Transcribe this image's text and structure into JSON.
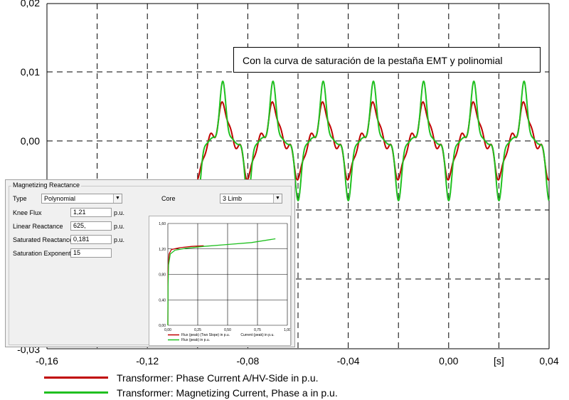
{
  "chart_data": {
    "type": "line",
    "x_ticks": [
      "-0,16",
      "-0,12",
      "-0,08",
      "-0,04",
      "0,00",
      "0,04"
    ],
    "y_ticks": [
      "0,02",
      "0,01",
      "0,00",
      "-0,03"
    ],
    "x_unit_label": "[s]",
    "xlim": [
      -0.16,
      0.04
    ],
    "ylim": [
      -0.03,
      0.02
    ],
    "grid": true,
    "annotation": "Con la curva de saturación de la pestaña EMT y polinomial",
    "series": [
      {
        "name": "Transformer: Phase Current A/HV-Side in p.u.",
        "color": "#c00000",
        "description_values": {
          "start_x": -0.1,
          "end_x": 0.04,
          "frequency_hz": 50,
          "peak": 0.0064,
          "trough": -0.0064
        }
      },
      {
        "name": "Transformer: Magnetizing Current, Phase a in p.u.",
        "color": "#20c020",
        "description_values": {
          "start_x": -0.1,
          "end_x": 0.04,
          "frequency_hz": 50,
          "peak": 0.0091,
          "trough": -0.0096
        }
      }
    ],
    "legend_placement": "bottom-left"
  },
  "dialog": {
    "title": "Magnetizing Reactance",
    "type_label": "Type",
    "type_value": "Polynomial",
    "core_label": "Core",
    "core_value": "3 Limb",
    "knee_flux_label": "Knee Flux",
    "knee_flux_value": "1,21",
    "linear_reactance_label": "Linear Reactance",
    "linear_reactance_value": "625,",
    "saturated_reactance_label": "Saturated Reactance",
    "saturated_reactance_value": "0,181",
    "saturation_exponent_label": "Saturation Exponent",
    "saturation_exponent_value": "15",
    "unit_pu": "p.u.",
    "mini_chart": {
      "type": "line",
      "y_ticks": [
        "1,60",
        "1,20",
        "0,80",
        "0,40",
        "0,00"
      ],
      "x_ticks": [
        "0,00",
        "0,25",
        "0,50",
        "0,75",
        "1,00"
      ],
      "x_axis_title": "Current (peak) in p.u.",
      "series": [
        {
          "name": "Flux (peak) (Two Slope) in p.u.",
          "color": "#c00000",
          "points": [
            [
              0,
              0.0
            ],
            [
              0.002,
              0.9
            ],
            [
              0.01,
              1.12
            ],
            [
              0.03,
              1.19
            ],
            [
              0.1,
              1.22
            ],
            [
              0.2,
              1.24
            ],
            [
              0.3,
              1.25
            ]
          ]
        },
        {
          "name": "Flux (peak) in p.u.",
          "color": "#20c020",
          "points": [
            [
              0,
              0.0
            ],
            [
              0.002,
              0.6
            ],
            [
              0.006,
              0.95
            ],
            [
              0.02,
              1.12
            ],
            [
              0.06,
              1.18
            ],
            [
              0.15,
              1.21
            ],
            [
              0.3,
              1.24
            ],
            [
              0.5,
              1.27
            ],
            [
              0.7,
              1.3
            ],
            [
              0.9,
              1.36
            ]
          ]
        }
      ],
      "xlim": [
        0,
        1
      ],
      "ylim": [
        0,
        1.6
      ]
    }
  }
}
